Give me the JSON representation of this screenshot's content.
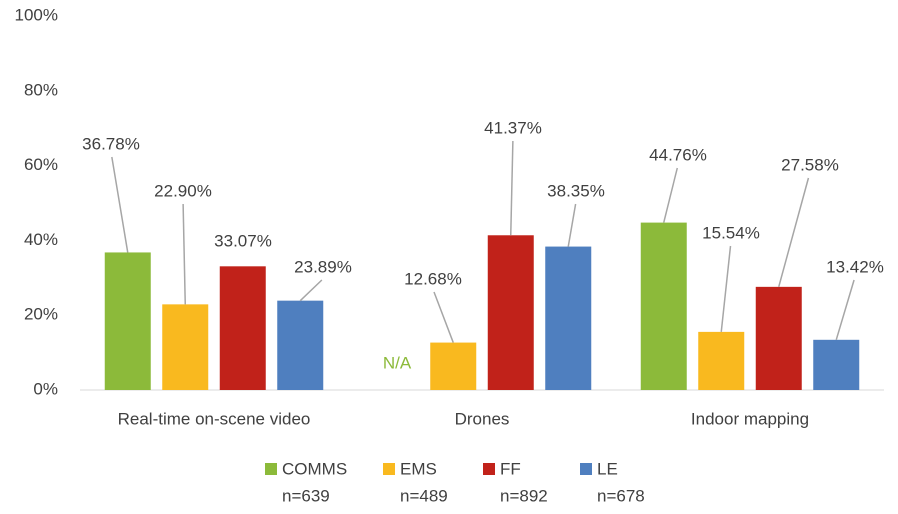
{
  "chart_data": {
    "type": "bar",
    "categories": [
      "Real-time on-scene video",
      "Drones",
      "Indoor mapping"
    ],
    "series": [
      {
        "name": "COMMS",
        "sample": "n=639",
        "color": "#8cba3a",
        "values": [
          36.78,
          null,
          44.76
        ],
        "value_labels": [
          "36.78%",
          "N/A",
          "44.76%"
        ]
      },
      {
        "name": "EMS",
        "sample": "n=489",
        "color": "#f9b91f",
        "values": [
          22.9,
          12.68,
          15.54
        ],
        "value_labels": [
          "22.90%",
          "12.68%",
          "15.54%"
        ]
      },
      {
        "name": "FF",
        "sample": "n=892",
        "color": "#c1221a",
        "values": [
          33.07,
          41.37,
          27.58
        ],
        "value_labels": [
          "33.07%",
          "41.37%",
          "27.58%"
        ]
      },
      {
        "name": "LE",
        "sample": "n=678",
        "color": "#4f7fbf",
        "values": [
          23.89,
          38.35,
          13.42
        ],
        "value_labels": [
          "23.89%",
          "38.35%",
          "13.42%"
        ]
      }
    ],
    "ylim": [
      0,
      100
    ],
    "yticks": [
      {
        "value": 0,
        "label": "0%"
      },
      {
        "value": 20,
        "label": "20%"
      },
      {
        "value": 40,
        "label": "40%"
      },
      {
        "value": 60,
        "label": "60%"
      },
      {
        "value": 80,
        "label": "80%"
      },
      {
        "value": 100,
        "label": "100%"
      }
    ],
    "grid": false,
    "legend": "bottom"
  }
}
